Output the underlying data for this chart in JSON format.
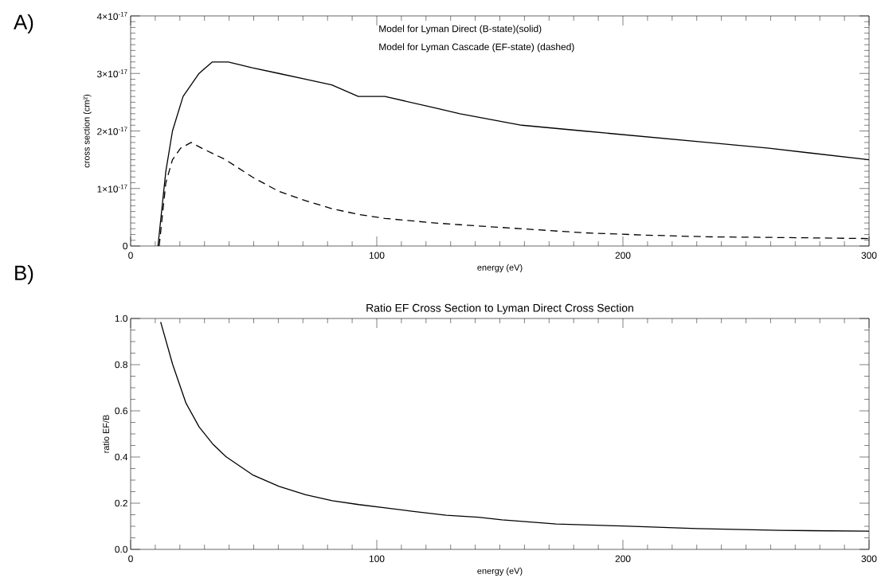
{
  "chart_data": [
    {
      "type": "line",
      "xlabel": "energy (eV)",
      "ylabel": "cross section (cm²)",
      "annotations": [
        "A)",
        "Model for Lyman Direct (B-state)(solid)",
        "Model for Lyman Cascade (EF-state) (dashed)"
      ],
      "xlim": [
        0,
        300
      ],
      "ylim": [
        0,
        4e-17
      ],
      "xticks": [
        0,
        100,
        200,
        300
      ],
      "yticks": [
        0,
        {
          "value": 1e-17,
          "label": "1×10$^{-17}$"
        },
        {
          "value": 2e-17,
          "label": "2×10$^{-17}$"
        },
        {
          "value": 3e-17,
          "label": "3×10$^{-17}$"
        },
        {
          "value": 4e-17,
          "label": "4×10$^{-17}$"
        }
      ],
      "series": [
        {
          "color": "#000000",
          "line_style": "solid",
          "x": [
            11.1,
            14.3,
            17.0,
            21.3,
            27.8,
            33.2,
            39.7,
            49.4,
            60.2,
            70.9,
            81.7,
            92.5,
            103.3,
            123.8,
            133.8,
            158.9,
            184.0,
            209.1,
            234.2,
            259.3,
            300
          ],
          "values": [
            0,
            1.3e-17,
            2e-17,
            2.6e-17,
            3e-17,
            3.2e-17,
            3.2e-17,
            3.1e-17,
            3e-17,
            2.9e-17,
            2.8e-17,
            2.6e-17,
            2.6e-17,
            2.4e-17,
            2.3e-17,
            2.1e-17,
            2e-17,
            1.9e-17,
            1.8e-17,
            1.7e-17,
            1.5e-17
          ]
        },
        {
          "color": "#000000",
          "line_style": "dashed",
          "x": [
            11.6,
            14.3,
            17.0,
            20.3,
            24.6,
            28.9,
            38.6,
            49.4,
            60.2,
            70.9,
            81.7,
            92.5,
            103.3,
            123.8,
            133.8,
            158.9,
            184.0,
            209.1,
            234.2,
            259.3,
            300
          ],
          "values": [
            0,
            1.1e-17,
            1.5e-17,
            1.7e-17,
            1.8e-17,
            1.7e-17,
            1.5e-17,
            1.2e-17,
            9.5e-18,
            7.9e-18,
            6.5e-18,
            5.5e-18,
            4.8e-18,
            4e-18,
            3.7e-18,
            3e-18,
            2.3e-18,
            1.9e-18,
            1.6e-18,
            1.5e-18,
            1.3e-18
          ]
        }
      ]
    },
    {
      "type": "line",
      "title": "Ratio EF Cross Section to Lyman Direct Cross Section",
      "xlabel": "energy (eV)",
      "ylabel": "ratio EF/B",
      "annotations": [
        "B)"
      ],
      "xlim": [
        0,
        300
      ],
      "ylim": [
        0,
        1
      ],
      "xticks": [
        0,
        100,
        200,
        300
      ],
      "yticks": [
        {
          "value": 0,
          "label": "0.0"
        },
        {
          "value": 0.2,
          "label": "0.2"
        },
        {
          "value": 0.4,
          "label": "0.4"
        },
        {
          "value": 0.6,
          "label": "0.6"
        },
        {
          "value": 0.8,
          "label": "0.8"
        },
        {
          "value": 1,
          "label": "1.0"
        }
      ],
      "series": [
        {
          "color": "#000000",
          "line_style": "solid",
          "x": [
            12.2,
            17.1,
            22.5,
            27.9,
            33.3,
            38.7,
            49.5,
            60.3,
            71.1,
            81.9,
            92.7,
            103.5,
            114.3,
            128.2,
            141.3,
            150.8,
            172.9,
            200,
            230,
            264,
            300
          ],
          "values": [
            0.985,
            0.8,
            0.633,
            0.529,
            0.457,
            0.402,
            0.323,
            0.273,
            0.237,
            0.211,
            0.194,
            0.18,
            0.165,
            0.148,
            0.139,
            0.128,
            0.11,
            0.101,
            0.09,
            0.082,
            0.079
          ]
        }
      ]
    }
  ]
}
